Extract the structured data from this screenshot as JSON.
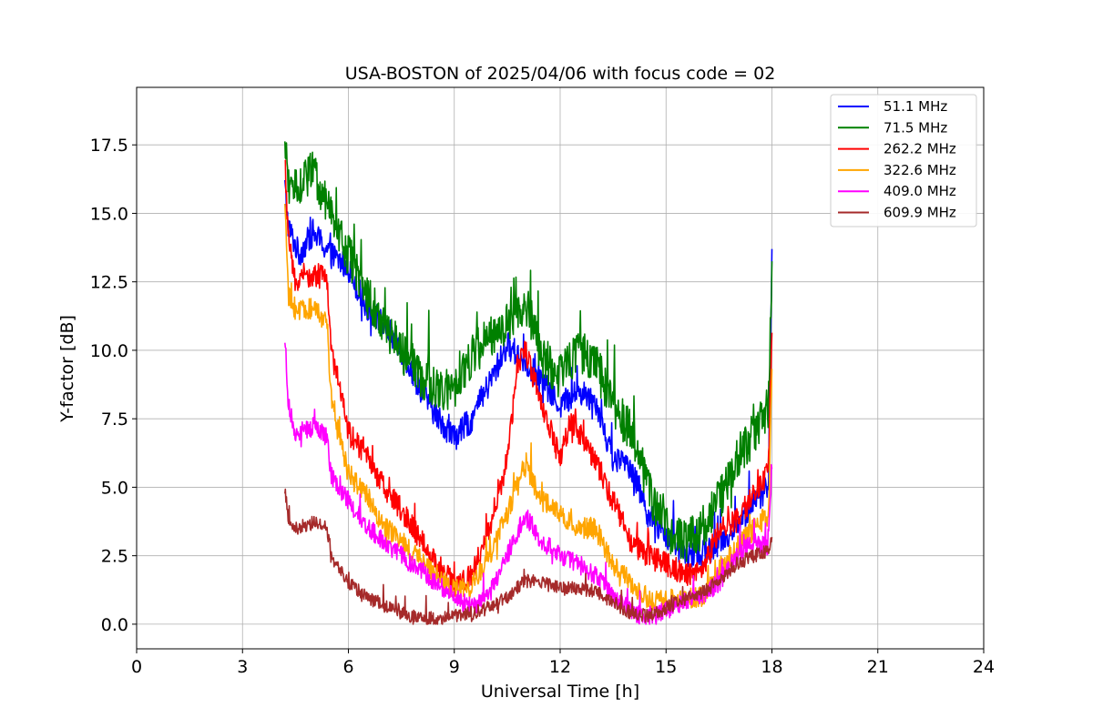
{
  "chart_data": {
    "type": "line",
    "title": "USA-BOSTON of 2025/04/06 with focus code = 02",
    "xlabel": "Universal Time [h]",
    "ylabel": "Y-factor [dB]",
    "xlim": [
      0,
      24
    ],
    "ylim": [
      -0.9,
      19.6
    ],
    "xticks": [
      0,
      3,
      6,
      9,
      12,
      15,
      18,
      21,
      24
    ],
    "yticks": [
      0.0,
      2.5,
      5.0,
      7.5,
      10.0,
      12.5,
      15.0,
      17.5
    ],
    "ytick_labels": [
      "0.0",
      "2.5",
      "5.0",
      "7.5",
      "10.0",
      "12.5",
      "15.0",
      "17.5"
    ],
    "grid": true,
    "legend_position": "top-right",
    "series": [
      {
        "name": " 51.1 MHz",
        "color": "#0000ff",
        "noise": 0.5,
        "x": [
          4.2,
          4.3,
          4.6,
          5.0,
          5.5,
          6.0,
          6.5,
          7.0,
          7.5,
          8.0,
          8.5,
          9.0,
          9.5,
          10.0,
          10.5,
          11.0,
          11.5,
          12.0,
          12.5,
          13.0,
          13.5,
          14.0,
          14.5,
          15.0,
          15.5,
          16.0,
          16.5,
          17.0,
          17.5,
          17.9,
          18.0
        ],
        "y": [
          16.0,
          14.5,
          13.5,
          14.3,
          13.5,
          13.0,
          11.6,
          11.0,
          10.0,
          8.7,
          7.6,
          6.8,
          7.5,
          8.8,
          10.2,
          9.6,
          8.8,
          8.0,
          8.5,
          8.2,
          6.0,
          5.8,
          4.0,
          3.2,
          2.6,
          2.5,
          3.0,
          3.5,
          4.5,
          5.0,
          13.5
        ]
      },
      {
        "name": " 71.5 MHz",
        "color": "#008000",
        "noise": 0.8,
        "x": [
          4.2,
          4.3,
          4.6,
          5.0,
          5.5,
          6.0,
          6.5,
          7.0,
          7.5,
          8.0,
          8.5,
          9.0,
          9.5,
          10.0,
          10.5,
          11.0,
          11.5,
          12.0,
          12.5,
          13.0,
          13.5,
          14.0,
          14.5,
          15.0,
          15.5,
          16.0,
          16.5,
          17.0,
          17.5,
          17.9,
          18.0
        ],
        "y": [
          17.5,
          16.0,
          16.0,
          16.5,
          15.0,
          13.5,
          12.0,
          11.0,
          10.0,
          9.0,
          8.5,
          8.5,
          9.8,
          10.5,
          11.0,
          11.8,
          9.8,
          9.0,
          10.0,
          9.5,
          8.0,
          7.0,
          5.0,
          3.5,
          3.0,
          3.5,
          4.5,
          6.0,
          7.0,
          8.0,
          12.5
        ]
      },
      {
        "name": "262.2 MHz",
        "color": "#ff0000",
        "noise": 0.45,
        "x": [
          4.2,
          4.3,
          4.5,
          5.0,
          5.4,
          5.5,
          5.8,
          6.0,
          6.5,
          7.0,
          7.5,
          8.0,
          8.5,
          9.0,
          9.5,
          10.0,
          10.5,
          10.8,
          11.0,
          11.5,
          12.0,
          12.3,
          12.5,
          13.0,
          13.5,
          14.0,
          14.5,
          15.0,
          15.5,
          16.0,
          16.5,
          17.0,
          17.5,
          17.9,
          18.0
        ],
        "y": [
          17.0,
          14.0,
          12.5,
          12.8,
          12.6,
          10.0,
          8.5,
          7.0,
          6.2,
          5.0,
          4.2,
          3.2,
          2.2,
          1.4,
          1.8,
          3.5,
          6.0,
          9.5,
          10.0,
          8.0,
          6.0,
          7.5,
          7.0,
          6.0,
          4.5,
          3.0,
          2.5,
          2.2,
          1.8,
          1.8,
          3.5,
          3.8,
          4.8,
          5.5,
          11.0
        ]
      },
      {
        "name": "322.6 MHz",
        "color": "#ffa500",
        "noise": 0.4,
        "x": [
          4.2,
          4.3,
          4.5,
          5.0,
          5.4,
          5.5,
          5.8,
          6.0,
          6.5,
          7.0,
          7.5,
          8.0,
          8.5,
          9.0,
          9.5,
          10.0,
          10.5,
          11.0,
          11.5,
          12.0,
          12.5,
          13.0,
          13.5,
          14.0,
          14.5,
          15.0,
          15.5,
          16.0,
          16.5,
          17.0,
          17.5,
          17.9,
          18.0
        ],
        "y": [
          15.5,
          12.0,
          11.5,
          11.5,
          11.0,
          8.5,
          6.5,
          5.5,
          4.8,
          3.6,
          3.0,
          2.4,
          1.8,
          1.2,
          1.4,
          2.5,
          4.0,
          5.8,
          4.5,
          4.0,
          3.5,
          3.5,
          2.2,
          1.5,
          0.9,
          0.9,
          0.9,
          1.0,
          2.0,
          2.8,
          3.5,
          4.0,
          9.0
        ]
      },
      {
        "name": "409.0 MHz",
        "color": "#ff00ff",
        "noise": 0.35,
        "x": [
          4.2,
          4.3,
          4.5,
          5.0,
          5.4,
          5.5,
          5.8,
          6.0,
          6.5,
          7.0,
          7.5,
          8.0,
          8.5,
          9.0,
          9.5,
          10.0,
          10.5,
          11.0,
          11.5,
          12.0,
          12.5,
          13.0,
          13.5,
          14.0,
          14.5,
          15.0,
          15.5,
          16.0,
          16.5,
          17.0,
          17.5,
          17.9,
          18.0
        ],
        "y": [
          10.5,
          8.0,
          7.0,
          7.2,
          6.8,
          5.5,
          4.8,
          4.5,
          3.6,
          3.0,
          2.5,
          2.0,
          1.5,
          1.0,
          0.6,
          1.2,
          2.5,
          4.0,
          3.0,
          2.5,
          2.2,
          1.8,
          1.0,
          0.5,
          0.2,
          0.5,
          0.8,
          1.0,
          1.5,
          2.5,
          3.0,
          2.8,
          6.0
        ]
      },
      {
        "name": "609.9 MHz",
        "color": "#a52a2a",
        "noise": 0.25,
        "x": [
          4.2,
          4.3,
          4.5,
          5.0,
          5.4,
          5.5,
          5.8,
          6.0,
          6.5,
          7.0,
          7.5,
          8.0,
          8.5,
          9.0,
          9.5,
          10.0,
          10.5,
          11.0,
          11.5,
          12.0,
          12.5,
          13.0,
          13.5,
          14.0,
          14.5,
          15.0,
          15.5,
          16.0,
          16.5,
          17.0,
          17.5,
          17.9,
          18.0
        ],
        "y": [
          5.0,
          3.8,
          3.5,
          3.7,
          3.5,
          2.5,
          2.0,
          1.5,
          1.0,
          0.7,
          0.4,
          0.25,
          0.2,
          0.3,
          0.4,
          0.6,
          1.0,
          1.6,
          1.5,
          1.3,
          1.3,
          1.2,
          0.8,
          0.4,
          0.3,
          0.6,
          0.9,
          1.1,
          1.6,
          2.2,
          2.5,
          2.7,
          3.0
        ]
      }
    ]
  }
}
